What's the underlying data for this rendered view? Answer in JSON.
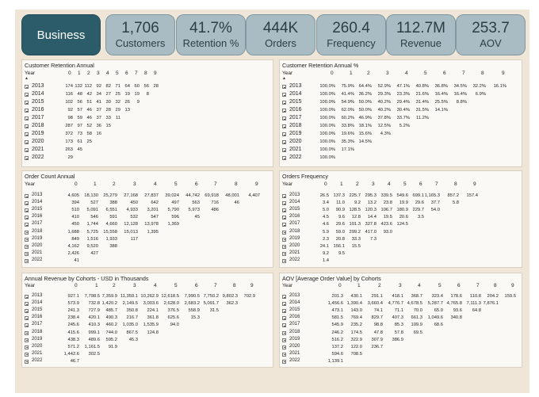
{
  "kpis": [
    {
      "name": "business-tab",
      "value": "Business",
      "label": ""
    },
    {
      "name": "customers-kpi",
      "value": "1,706",
      "label": "Customers"
    },
    {
      "name": "retention-kpi",
      "value": "41.7%",
      "label": "Retention %"
    },
    {
      "name": "orders-kpi",
      "value": "444K",
      "label": "Orders"
    },
    {
      "name": "frequency-kpi",
      "value": "260.4",
      "label": "Frequency"
    },
    {
      "name": "revenue-kpi",
      "value": "112.7M",
      "label": "Revenue"
    },
    {
      "name": "aov-kpi",
      "value": "253.7",
      "label": "AOV"
    }
  ],
  "panels": [
    {
      "title": "Customer Retention Annual",
      "yearLabel": "Year",
      "cols": [
        "0",
        "1",
        "2",
        "3",
        "4",
        "5",
        "6",
        "7",
        "8",
        "9"
      ],
      "years": [
        "2013",
        "2014",
        "2015",
        "2016",
        "2017",
        "2018",
        "2019",
        "2020",
        "2021",
        "2022"
      ],
      "rows": [
        [
          "174",
          "132",
          "112",
          "92",
          "82",
          "71",
          "64",
          "60",
          "56",
          "28"
        ],
        [
          "116",
          "48",
          "42",
          "34",
          "27",
          "25",
          "19",
          "19",
          "8",
          ""
        ],
        [
          "102",
          "56",
          "51",
          "41",
          "30",
          "32",
          "26",
          "9",
          "",
          ""
        ],
        [
          "92",
          "57",
          "46",
          "37",
          "28",
          "29",
          "13",
          "",
          "",
          ""
        ],
        [
          "98",
          "59",
          "46",
          "37",
          "33",
          "11",
          "",
          "",
          "",
          ""
        ],
        [
          "287",
          "97",
          "52",
          "36",
          "15",
          "",
          "",
          "",
          "",
          ""
        ],
        [
          "372",
          "73",
          "58",
          "16",
          "",
          "",
          "",
          "",
          "",
          ""
        ],
        [
          "173",
          "61",
          "25",
          "",
          "",
          "",
          "",
          "",
          "",
          ""
        ],
        [
          "263",
          "45",
          "",
          "",
          "",
          "",
          "",
          "",
          "",
          ""
        ],
        [
          "29",
          "",
          "",
          "",
          "",
          "",
          "",
          "",
          "",
          ""
        ]
      ]
    },
    {
      "title": "Customer Retention Annual %",
      "yearLabel": "Year",
      "cols": [
        "0",
        "1",
        "2",
        "3",
        "4",
        "5",
        "6",
        "7",
        "8",
        "9"
      ],
      "years": [
        "2013",
        "2014",
        "2015",
        "2016",
        "2017",
        "2018",
        "2019",
        "2020",
        "2021",
        "2022"
      ],
      "rows": [
        [
          "100.0%",
          "75.9%",
          "64.4%",
          "52.9%",
          "47.1%",
          "40.8%",
          "36.8%",
          "34.5%",
          "32.2%",
          "16.1%"
        ],
        [
          "100.0%",
          "41.4%",
          "36.2%",
          "29.3%",
          "23.3%",
          "21.6%",
          "16.4%",
          "16.4%",
          "6.9%",
          ""
        ],
        [
          "100.0%",
          "54.9%",
          "50.0%",
          "40.2%",
          "29.4%",
          "31.4%",
          "25.5%",
          "8.8%",
          "",
          ""
        ],
        [
          "100.0%",
          "62.0%",
          "50.0%",
          "40.2%",
          "30.4%",
          "31.5%",
          "14.1%",
          "",
          "",
          ""
        ],
        [
          "100.0%",
          "60.2%",
          "46.9%",
          "37.8%",
          "33.7%",
          "11.2%",
          "",
          "",
          "",
          ""
        ],
        [
          "100.0%",
          "33.8%",
          "18.1%",
          "12.5%",
          "5.2%",
          "",
          "",
          "",
          "",
          ""
        ],
        [
          "100.0%",
          "19.6%",
          "15.6%",
          "4.3%",
          "",
          "",
          "",
          "",
          "",
          ""
        ],
        [
          "100.0%",
          "35.3%",
          "14.5%",
          "",
          "",
          "",
          "",
          "",
          "",
          ""
        ],
        [
          "100.0%",
          "17.1%",
          "",
          "",
          "",
          "",
          "",
          "",
          "",
          ""
        ],
        [
          "100.0%",
          "",
          "",
          "",
          "",
          "",
          "",
          "",
          "",
          ""
        ]
      ]
    },
    {
      "title": "Order Count Annual",
      "yearLabel": "Year",
      "cols": [
        "0",
        "1",
        "2",
        "3",
        "4",
        "5",
        "6",
        "7",
        "8",
        "9"
      ],
      "years": [
        "2013",
        "2014",
        "2015",
        "2016",
        "2017",
        "2018",
        "2019",
        "2020",
        "2021",
        "2022"
      ],
      "rows": [
        [
          "4,605",
          "18,130",
          "25,279",
          "27,168",
          "27,837",
          "39,024",
          "44,742",
          "69,918",
          "48,001",
          "4,407"
        ],
        [
          "394",
          "527",
          "388",
          "450",
          "642",
          "497",
          "563",
          "716",
          "46",
          ""
        ],
        [
          "510",
          "5,091",
          "6,551",
          "4,933",
          "3,201",
          "5,790",
          "5,973",
          "486",
          "",
          ""
        ],
        [
          "410",
          "546",
          "591",
          "532",
          "547",
          "596",
          "45",
          "",
          "",
          ""
        ],
        [
          "450",
          "1,744",
          "4,660",
          "12,128",
          "13,978",
          "1,369",
          "",
          "",
          "",
          ""
        ],
        [
          "1,688",
          "5,725",
          "15,558",
          "15,013",
          "1,395",
          "",
          "",
          "",
          "",
          ""
        ],
        [
          "849",
          "1,516",
          "1,933",
          "117",
          "",
          "",
          "",
          "",
          "",
          ""
        ],
        [
          "4,162",
          "9,520",
          "388",
          "",
          "",
          "",
          "",
          "",
          "",
          ""
        ],
        [
          "2,426",
          "427",
          "",
          "",
          "",
          "",
          "",
          "",
          "",
          ""
        ],
        [
          "41",
          "",
          "",
          "",
          "",
          "",
          "",
          "",
          "",
          ""
        ]
      ]
    },
    {
      "title": "Orders Frequency",
      "yearLabel": "Year",
      "cols": [
        "0",
        "1",
        "2",
        "3",
        "4",
        "5",
        "6",
        "7",
        "8",
        "9"
      ],
      "years": [
        "2013",
        "2014",
        "2015",
        "2016",
        "2017",
        "2018",
        "2019",
        "2020",
        "2021",
        "2022"
      ],
      "rows": [
        [
          "26.5",
          "137.3",
          "225.7",
          "295.3",
          "339.5",
          "549.6",
          "699.1",
          "1,165.3",
          "857.2",
          "157.4"
        ],
        [
          "3.4",
          "11.0",
          "9.2",
          "13.2",
          "23.8",
          "19.9",
          "29.6",
          "37.7",
          "5.8",
          ""
        ],
        [
          "5.0",
          "90.9",
          "128.5",
          "120.3",
          "106.7",
          "180.9",
          "229.7",
          "54.0",
          "",
          ""
        ],
        [
          "4.5",
          "9.6",
          "12.8",
          "14.4",
          "19.5",
          "20.6",
          "3.5",
          "",
          "",
          ""
        ],
        [
          "4.6",
          "29.6",
          "101.3",
          "327.8",
          "423.6",
          "124.5",
          "",
          "",
          "",
          ""
        ],
        [
          "5.9",
          "59.0",
          "299.2",
          "417.0",
          "93.0",
          "",
          "",
          "",
          "",
          ""
        ],
        [
          "2.3",
          "20.8",
          "33.3",
          "7.3",
          "",
          "",
          "",
          "",
          "",
          ""
        ],
        [
          "24.1",
          "156.1",
          "15.5",
          "",
          "",
          "",
          "",
          "",
          "",
          ""
        ],
        [
          "9.2",
          "9.5",
          "",
          "",
          "",
          "",
          "",
          "",
          "",
          ""
        ],
        [
          "1.4",
          "",
          "",
          "",
          "",
          "",
          "",
          "",
          "",
          ""
        ]
      ]
    },
    {
      "title": "Annual Revenue by Cohorts - USD in Thousands",
      "yearLabel": "Year",
      "cols": [
        "0",
        "1",
        "2",
        "3",
        "4",
        "5",
        "6",
        "7",
        "8",
        "9"
      ],
      "years": [
        "2013",
        "2014",
        "2015",
        "2016",
        "2017",
        "2018",
        "2019",
        "2020",
        "2021",
        "2022"
      ],
      "rows": [
        [
          "927.1",
          "7,798.5",
          "7,359.9",
          "11,359.1",
          "10,262.9",
          "12,618.5",
          "7,990.5",
          "7,750.2",
          "9,802.3",
          "702.9"
        ],
        [
          "573.9",
          "732.8",
          "1,420.2",
          "2,149.5",
          "3,003.6",
          "2,628.0",
          "2,683.2",
          "5,091.7",
          "362.3",
          ""
        ],
        [
          "241.3",
          "727.9",
          "485.7",
          "350.8",
          "224.1",
          "376.5",
          "558.9",
          "31.5",
          "",
          ""
        ],
        [
          "238.4",
          "420.1",
          "490.3",
          "216.7",
          "361.8",
          "625.6",
          "15.3",
          "",
          "",
          ""
        ],
        [
          "245.6",
          "410.3",
          "460.2",
          "1,035.0",
          "1,535.9",
          "94.0",
          "",
          "",
          "",
          ""
        ],
        [
          "415.6",
          "999.1",
          "744.0",
          "867.5",
          "124.8",
          "",
          "",
          "",
          "",
          ""
        ],
        [
          "438.3",
          "489.6",
          "595.2",
          "45.3",
          "",
          "",
          "",
          "",
          "",
          ""
        ],
        [
          "571.2",
          "1,161.5",
          "91.9",
          "",
          "",
          "",
          "",
          "",
          "",
          ""
        ],
        [
          "1,442.6",
          "302.5",
          "",
          "",
          "",
          "",
          "",
          "",
          "",
          ""
        ],
        [
          "46.7",
          "",
          "",
          "",
          "",
          "",
          "",
          "",
          "",
          ""
        ]
      ]
    },
    {
      "title": "AOV [Average Order Value] by Cohorts",
      "yearLabel": "Year",
      "cols": [
        "0",
        "1",
        "2",
        "3",
        "4",
        "5",
        "6",
        "7",
        "8",
        "9"
      ],
      "years": [
        "2013",
        "2014",
        "2015",
        "2016",
        "2017",
        "2018",
        "2019",
        "2020",
        "2021",
        "2022"
      ],
      "rows": [
        [
          "201.3",
          "430.1",
          "291.1",
          "418.1",
          "368.7",
          "323.4",
          "178.6",
          "110.8",
          "204.2",
          "159.5"
        ],
        [
          "1,456.6",
          "1,390.4",
          "3,660.4",
          "4,776.7",
          "4,678.5",
          "5,287.7",
          "4,765.8",
          "7,111.3",
          "7,876.1",
          ""
        ],
        [
          "473.1",
          "143.0",
          "74.1",
          "71.1",
          "70.0",
          "65.0",
          "93.6",
          "64.8",
          "",
          ""
        ],
        [
          "581.5",
          "769.4",
          "829.7",
          "407.3",
          "661.3",
          "1,049.6",
          "340.8",
          "",
          "",
          ""
        ],
        [
          "545.9",
          "235.2",
          "98.8",
          "85.3",
          "109.9",
          "68.6",
          "",
          "",
          "",
          ""
        ],
        [
          "246.2",
          "174.5",
          "47.8",
          "57.8",
          "69.5",
          "",
          "",
          "",
          "",
          ""
        ],
        [
          "516.2",
          "322.9",
          "307.9",
          "386.9",
          "",
          "",
          "",
          "",
          "",
          ""
        ],
        [
          "137.2",
          "122.0",
          "236.7",
          "",
          "",
          "",
          "",
          "",
          "",
          ""
        ],
        [
          "594.6",
          "708.5",
          "",
          "",
          "",
          "",
          "",
          "",
          "",
          ""
        ],
        [
          "1,139.1",
          "",
          "",
          "",
          "",
          "",
          "",
          "",
          "",
          ""
        ]
      ]
    }
  ]
}
